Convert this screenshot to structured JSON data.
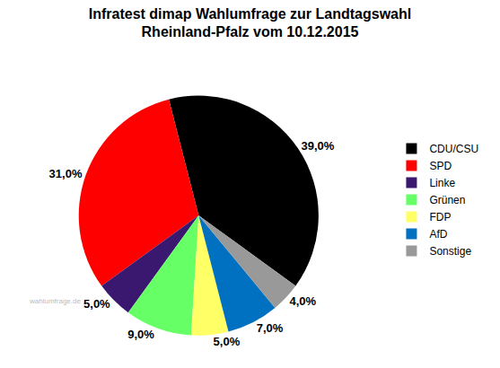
{
  "chart_data": {
    "type": "pie",
    "title": "Infratest dimap Wahlumfrage zur Landtagswahl\nRheinland-Pfalz vom 10.12.2015",
    "categories": [
      "CDU/CSU",
      "SPD",
      "Linke",
      "Grünen",
      "FDP",
      "AfD",
      "Sonstige"
    ],
    "values": [
      39,
      31,
      5,
      9,
      5,
      7,
      4
    ],
    "value_labels": [
      "39,0%",
      "31,0%",
      "5,0%",
      "9,0%",
      "5,0%",
      "7,0%",
      "4,0%"
    ],
    "colors": [
      "#000000",
      "#ff0000",
      "#3b1870",
      "#66ff66",
      "#ffff66",
      "#0070c0",
      "#999999"
    ],
    "data_labels": true,
    "legend": "right",
    "annotations": [
      "wahlumfrage.de"
    ]
  }
}
